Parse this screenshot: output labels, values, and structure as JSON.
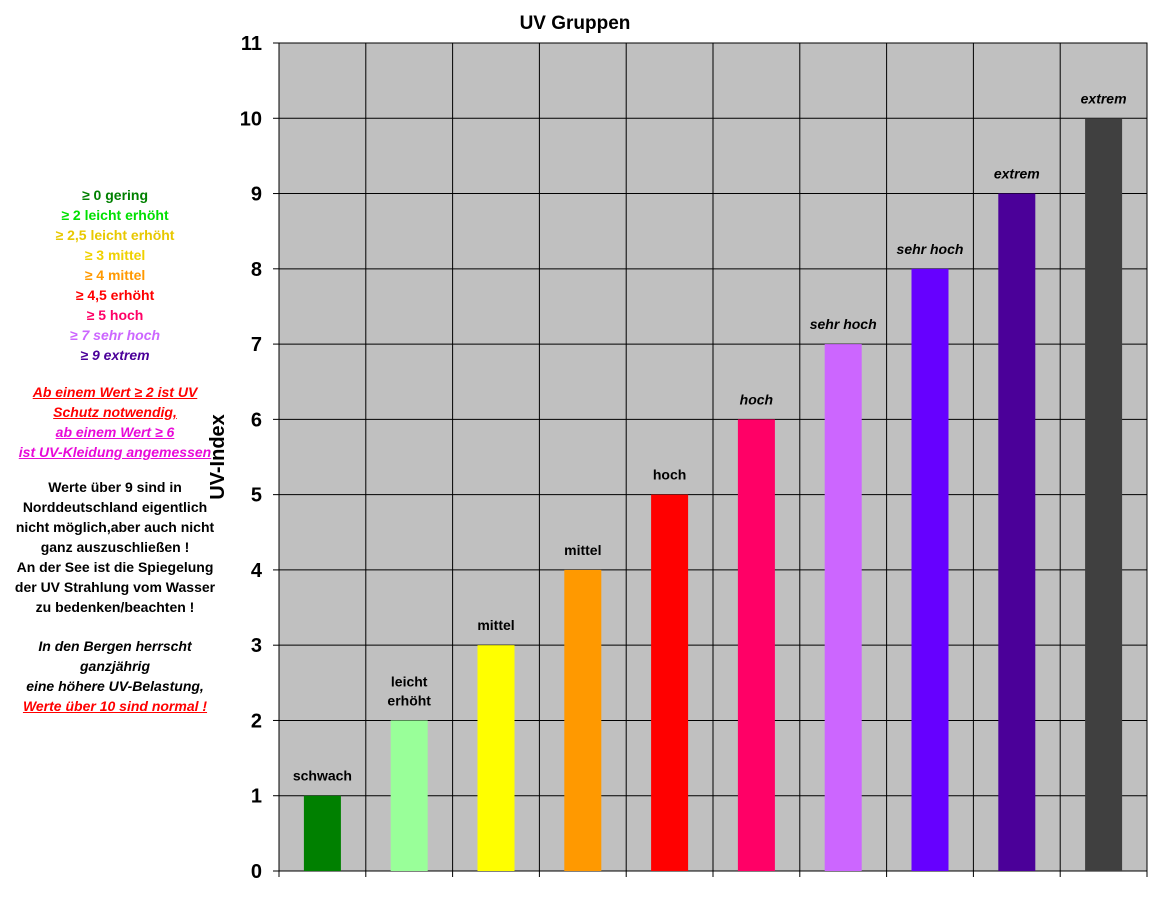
{
  "chart_data": {
    "type": "bar",
    "title": "UV Gruppen",
    "xlabel": "",
    "ylabel": "UV-Index",
    "ylim": [
      0,
      11
    ],
    "yticks": [
      0,
      1,
      2,
      3,
      4,
      5,
      6,
      7,
      8,
      9,
      10,
      11
    ],
    "grid": true,
    "values": [
      1,
      2,
      3,
      4,
      5,
      6,
      7,
      8,
      9,
      10
    ],
    "colors": [
      "#008000",
      "#99ff99",
      "#ffff00",
      "#ff9900",
      "#ff0000",
      "#ff0066",
      "#cc66ff",
      "#6600ff",
      "#4b0099",
      "#404040"
    ],
    "data_labels": [
      {
        "lines": [
          "schwach"
        ],
        "italic": false
      },
      {
        "lines": [
          "leicht",
          "erhöht"
        ],
        "italic": false
      },
      {
        "lines": [
          "mittel"
        ],
        "italic": false
      },
      {
        "lines": [
          "mittel"
        ],
        "italic": false
      },
      {
        "lines": [
          "hoch"
        ],
        "italic": false
      },
      {
        "lines": [
          "hoch"
        ],
        "italic": true
      },
      {
        "lines": [
          "sehr hoch"
        ],
        "italic": true
      },
      {
        "lines": [
          "sehr hoch"
        ],
        "italic": true
      },
      {
        "lines": [
          "extrem"
        ],
        "italic": true
      },
      {
        "lines": [
          "extrem"
        ],
        "italic": true
      }
    ],
    "plot_background": "#c0c0c0"
  },
  "legend": {
    "items": [
      {
        "text": "≥ 0 gering",
        "color": "#008000"
      },
      {
        "text": "≥ 2 leicht erhöht",
        "color": "#00e000"
      },
      {
        "text": "≥ 2,5 leicht erhöht",
        "color": "#e8c800"
      },
      {
        "text": "≥ 3 mittel",
        "color": "#f0d000"
      },
      {
        "text": "≥ 4 mittel",
        "color": "#ff9900"
      },
      {
        "text": "≥ 4,5 erhöht",
        "color": "#ff0000"
      },
      {
        "text": "≥ 5 hoch",
        "color": "#ff0066"
      },
      {
        "text": "≥ 7 sehr hoch",
        "color": "#cc66ff"
      },
      {
        "text": "≥ 9 extrem",
        "color": "#4b0099"
      }
    ]
  },
  "notes": {
    "uv_protection": [
      "Ab einem Wert ≥ 2 ist UV",
      "Schutz notwendig,"
    ],
    "uv_clothing": [
      "ab einem Wert  ≥ 6",
      "ist UV-Kleidung angemessen"
    ],
    "north_germany": [
      "Werte über 9 sind in",
      "Norddeutschland eigentlich",
      "nicht möglich,aber auch nicht",
      "ganz auszuschließen !",
      "An der See ist die Spiegelung",
      "der UV Strahlung vom Wasser",
      "zu bedenken/beachten !"
    ],
    "mountains": [
      "In den Bergen herrscht",
      "ganzjährig",
      "eine höhere UV-Belastung,"
    ],
    "mountains_emph": "Werte über 10 sind normal !"
  }
}
